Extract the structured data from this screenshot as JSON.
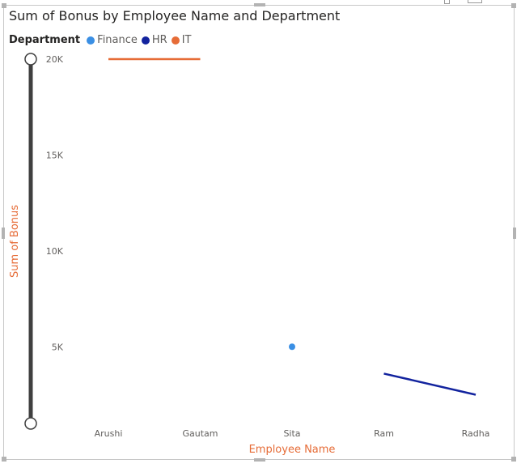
{
  "colors": {
    "Finance": "#3a8fe4",
    "HR": "#12239e",
    "IT": "#e66c37",
    "axis_title": "#e66c37",
    "slider": "#3f3f3f"
  },
  "legend": {
    "title": "Department",
    "items": [
      {
        "label": "Finance",
        "color": "#3a8fe4"
      },
      {
        "label": "HR",
        "color": "#12239e"
      },
      {
        "label": "IT",
        "color": "#e66c37"
      }
    ]
  },
  "chart_data": {
    "type": "line",
    "title": "Sum of Bonus by Employee Name and Department",
    "xlabel": "Employee Name",
    "ylabel": "Sum of Bonus",
    "categories": [
      "Arushi",
      "Gautam",
      "Sita",
      "Ram",
      "Radha"
    ],
    "ylim": [
      1000,
      20000
    ],
    "yticks": [
      {
        "value": 5000,
        "label": "5K"
      },
      {
        "value": 10000,
        "label": "10K"
      },
      {
        "value": 15000,
        "label": "15K"
      },
      {
        "value": 20000,
        "label": "20K"
      }
    ],
    "legend_position": "top-left",
    "grid": false,
    "series": [
      {
        "name": "Finance",
        "color": "#3a8fe4",
        "values": [
          null,
          null,
          5000,
          null,
          null
        ]
      },
      {
        "name": "HR",
        "color": "#12239e",
        "values": [
          null,
          null,
          null,
          3600,
          2500
        ]
      },
      {
        "name": "IT",
        "color": "#e66c37",
        "values": [
          20000,
          20000,
          null,
          null,
          null
        ]
      }
    ]
  }
}
